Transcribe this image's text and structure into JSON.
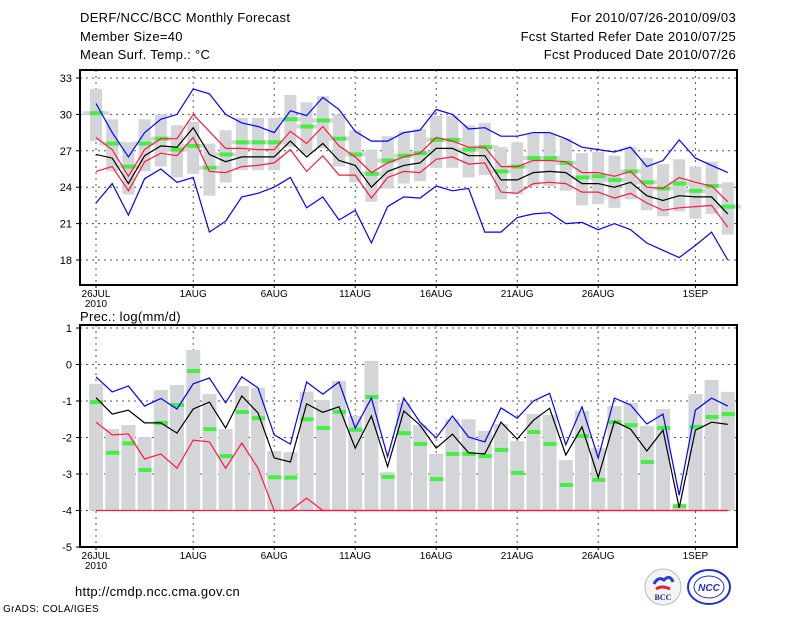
{
  "header": {
    "title": "DERF/NCC/BCC Monthly Forecast",
    "member_size": "Member Size=40",
    "variable": "Mean Surf. Temp.: °C",
    "period": "For 2010/07/26-2010/09/03",
    "started": "Fcst Started Refer Date 2010/07/25",
    "produced": "Fcst Produced Date 2010/07/26"
  },
  "footer": {
    "url": "http://cmdp.ncc.cma.gov.cn",
    "credit": "GrADS: COLA/IGES",
    "logo_bcc": "BCC",
    "logo_ncc": "NCC"
  },
  "colors": {
    "max_min": "#0000ff",
    "spread": "#ff1a3c",
    "mean": "#000000",
    "median": "#44ee44",
    "box": "#d4d5d9"
  },
  "chart_data": [
    {
      "type": "line",
      "title": "Mean Surf. Temp.: °C",
      "xlabel": "",
      "ylabel": "°C",
      "ylim": [
        17,
        33.5
      ],
      "yticks": [
        18,
        21,
        24,
        27,
        30,
        33
      ],
      "ytick_labels": [
        "18",
        "21",
        "24",
        "27",
        "30",
        "33"
      ],
      "xtick_days": [
        0,
        6,
        11,
        16,
        21,
        26,
        31,
        37
      ],
      "xtick_labels": [
        "26JUL",
        "1AUG",
        "6AUG",
        "11AUG",
        "16AUG",
        "21AUG",
        "26AUG",
        "1SEP"
      ],
      "xtick_year": "2010",
      "grid": true,
      "n_days": 40,
      "series": [
        {
          "name": "max",
          "values": [
            30.9,
            28.5,
            26.5,
            28.5,
            29.6,
            30.0,
            32.1,
            31.7,
            30.0,
            29.3,
            29.0,
            28.5,
            30.3,
            29.9,
            31.4,
            30.4,
            28.6,
            27.8,
            27.8,
            28.5,
            28.7,
            30.4,
            30.0,
            28.8,
            28.9,
            28.2,
            28.2,
            28.5,
            28.5,
            28.0,
            27.3,
            27.1,
            26.9,
            27.3,
            25.7,
            26.2,
            27.9,
            26.4,
            25.8,
            25.2
          ]
        },
        {
          "name": "upper",
          "values": [
            28.1,
            27.1,
            24.9,
            27.1,
            28.0,
            28.0,
            30.0,
            28.6,
            27.2,
            27.2,
            27.1,
            27.1,
            28.6,
            27.6,
            29.0,
            27.4,
            26.5,
            25.2,
            26.0,
            26.5,
            26.8,
            28.1,
            27.8,
            27.3,
            27.3,
            25.7,
            25.7,
            26.2,
            26.2,
            26.1,
            25.2,
            25.2,
            24.9,
            25.3,
            24.0,
            23.9,
            24.8,
            24.4,
            24.1,
            22.8
          ]
        },
        {
          "name": "mean",
          "values": [
            26.7,
            26.4,
            24.3,
            26.6,
            27.4,
            27.3,
            28.9,
            26.7,
            26.1,
            26.5,
            26.5,
            26.5,
            27.8,
            26.5,
            27.6,
            26.2,
            25.8,
            24.0,
            25.3,
            25.8,
            26.0,
            27.2,
            27.2,
            26.6,
            26.6,
            24.6,
            24.6,
            25.2,
            25.3,
            25.2,
            24.3,
            24.3,
            24.0,
            24.4,
            23.3,
            22.9,
            23.3,
            23.2,
            23.2,
            21.8
          ]
        },
        {
          "name": "lower",
          "values": [
            25.3,
            25.7,
            23.7,
            26.1,
            26.8,
            26.6,
            28.1,
            25.3,
            25.2,
            25.7,
            25.8,
            26.0,
            27.1,
            25.3,
            26.6,
            25.0,
            25.0,
            23.1,
            24.8,
            25.3,
            25.2,
            26.3,
            26.5,
            25.9,
            26.0,
            23.6,
            23.5,
            24.3,
            24.4,
            24.3,
            23.6,
            23.6,
            23.1,
            23.5,
            22.7,
            22.1,
            22.3,
            22.4,
            22.5,
            20.7
          ]
        },
        {
          "name": "min",
          "values": [
            22.7,
            24.3,
            21.7,
            24.7,
            25.5,
            24.4,
            24.8,
            20.3,
            21.2,
            23.2,
            23.5,
            24.0,
            24.8,
            22.3,
            23.2,
            21.3,
            22.1,
            19.4,
            22.4,
            23.2,
            23.1,
            24.1,
            23.7,
            23.9,
            20.3,
            20.3,
            21.5,
            21.8,
            21.9,
            21.0,
            21.1,
            20.5,
            21.0,
            20.5,
            19.4,
            18.8,
            18.2,
            19.2,
            20.3,
            18.0
          ]
        },
        {
          "name": "median",
          "values": [
            30.1,
            27.6,
            25.7,
            27.6,
            28.0,
            27.1,
            27.4,
            25.6,
            26.7,
            27.7,
            27.7,
            27.7,
            29.6,
            29.0,
            29.5,
            28.0,
            26.7,
            25.1,
            26.2,
            26.6,
            26.8,
            27.9,
            27.9,
            27.1,
            27.3,
            25.3,
            25.7,
            26.4,
            26.4,
            26.0,
            24.8,
            24.9,
            24.6,
            25.3,
            24.4,
            23.9,
            24.3,
            23.7,
            24.1,
            22.4
          ]
        }
      ],
      "box_below_median": 2.3,
      "box_above_median": 2.0
    },
    {
      "type": "line",
      "title": "Prec.: log(mm/d)",
      "xlabel": "",
      "ylabel": "log(mm/d)",
      "ylim": [
        -5,
        1
      ],
      "yticks": [
        -5,
        -4,
        -3,
        -2,
        -1,
        0,
        1
      ],
      "ytick_labels": [
        "-5",
        "-4",
        "-3",
        "-2",
        "-1",
        "0",
        "1"
      ],
      "xtick_days": [
        0,
        6,
        11,
        16,
        21,
        26,
        31,
        37
      ],
      "xtick_labels": [
        "26JUL",
        "1AUG",
        "6AUG",
        "11AUG",
        "16AUG",
        "21AUG",
        "26AUG",
        "1SEP"
      ],
      "xtick_year": "2010",
      "grid": true,
      "n_days": 40,
      "floor": -4,
      "series": [
        {
          "name": "upper",
          "values": [
            -0.34,
            -0.75,
            -0.59,
            -1.14,
            -0.93,
            -1.22,
            -0.53,
            -0.37,
            -1.05,
            -0.34,
            -0.64,
            -1.93,
            -2.18,
            -0.48,
            -0.81,
            -0.48,
            -1.74,
            -0.92,
            -2.53,
            -0.92,
            -1.58,
            -2.01,
            -1.41,
            -1.99,
            -2.12,
            -1.19,
            -1.47,
            -1.0,
            -0.79,
            -2.2,
            -1.16,
            -2.56,
            -0.92,
            -1.11,
            -1.63,
            -1.36,
            -3.58,
            -1.25,
            -0.92,
            -1.14
          ]
        },
        {
          "name": "mean",
          "values": [
            -0.91,
            -1.36,
            -1.25,
            -1.6,
            -1.6,
            -1.88,
            -1.22,
            -1.03,
            -1.74,
            -0.86,
            -1.33,
            -2.56,
            -2.67,
            -1.08,
            -1.31,
            -1.16,
            -2.29,
            -1.41,
            -2.8,
            -1.27,
            -1.66,
            -2.29,
            -1.91,
            -2.42,
            -2.45,
            -1.58,
            -2.04,
            -1.53,
            -1.2,
            -2.48,
            -1.71,
            -3.09,
            -1.56,
            -1.77,
            -2.37,
            -1.8,
            -3.93,
            -1.8,
            -1.58,
            -1.64
          ]
        },
        {
          "name": "lower",
          "values": [
            -1.58,
            -1.93,
            -1.9,
            -2.59,
            -2.45,
            -2.84,
            -2.07,
            -2.12,
            -2.84,
            -2.15,
            -2.84,
            -4,
            -4,
            -3.66,
            -4,
            -4,
            -4,
            -4,
            -4,
            -4,
            -4,
            -4,
            -4,
            -4,
            -4,
            -4,
            -4,
            -4,
            -4,
            -4,
            -4,
            -4,
            -4,
            -4,
            -4,
            -4,
            -4,
            -4,
            -4,
            -4
          ]
        },
        {
          "name": "median",
          "values": [
            -1.03,
            -2.42,
            -2.16,
            -2.89,
            -1.6,
            -1.11,
            -0.18,
            -1.77,
            -2.51,
            -1.3,
            -1.47,
            -3.09,
            -3.1,
            -1.5,
            -1.74,
            -1.3,
            -1.79,
            -0.89,
            -3.08,
            -1.88,
            -2.18,
            -3.14,
            -2.45,
            -2.45,
            -2.51,
            -2.34,
            -2.97,
            -1.85,
            -2.18,
            -3.3,
            -1.96,
            -3.16,
            -1.58,
            -1.66,
            -2.67,
            -1.74,
            -3.88,
            -1.71,
            -1.44,
            -1.36
          ]
        },
        {
          "name": "bar_top",
          "values": [
            -0.53,
            -1.77,
            -1.66,
            -1.99,
            -0.7,
            -0.56,
            0.4,
            -0.81,
            -1.77,
            -0.59,
            -0.64,
            -2.37,
            -2.4,
            -0.75,
            -0.97,
            -0.45,
            -1.41,
            0.1,
            -2.95,
            -1.05,
            -1.66,
            -2.45,
            -1.5,
            -1.5,
            -1.82,
            -1.63,
            -2.1,
            -1.36,
            -1.38,
            -2.62,
            -1.27,
            -2.29,
            -1.14,
            -1.05,
            -1.68,
            -1.22,
            -3.85,
            -0.81,
            -0.42,
            -0.75
          ]
        }
      ]
    }
  ]
}
